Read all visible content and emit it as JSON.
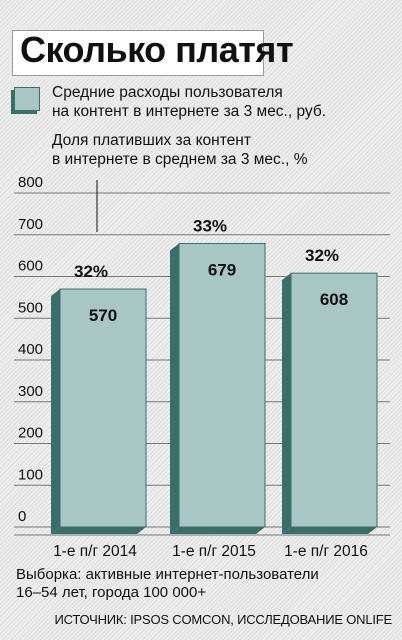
{
  "title": "Сколько платят",
  "legend": {
    "spend_label_line1": "Средние расходы пользователя",
    "spend_label_line2": "на контент в интернете за 3 мес., руб.",
    "share_label_line1": "Доля плативших за контент",
    "share_label_line2": "в интернете в среднем за 3 мес., %"
  },
  "colors": {
    "bar_face": "#a8c6c4",
    "bar_side": "#3a6e6b",
    "bar_top": "#cfe0de",
    "grid": "#777777",
    "text": "#111111"
  },
  "chart_data": {
    "type": "bar",
    "categories": [
      "1-е п/г 2014",
      "1-е п/г 2015",
      "1-е п/г 2016"
    ],
    "series": [
      {
        "name": "Средние расходы пользователя на контент в интернете за 3 мес., руб.",
        "values": [
          570,
          679,
          608
        ]
      },
      {
        "name": "Доля плативших за контент в интернете в среднем за 3 мес., %",
        "values": [
          32,
          33,
          32
        ]
      }
    ],
    "value_labels": [
      "570",
      "679",
      "608"
    ],
    "share_labels": [
      "32%",
      "33%",
      "32%"
    ],
    "y_ticks": [
      "0",
      "100",
      "200",
      "300",
      "400",
      "500",
      "600",
      "700",
      "800"
    ],
    "ylim": [
      0,
      800
    ],
    "grid": true
  },
  "footnote": {
    "line1": "Выборка: активные интернет-пользователи",
    "line2": "16–54 лет, города 100 000+"
  },
  "source": "ИСТОЧНИК: IPSOS COMCON, ИССЛЕДОВАНИЕ ONLIFE"
}
